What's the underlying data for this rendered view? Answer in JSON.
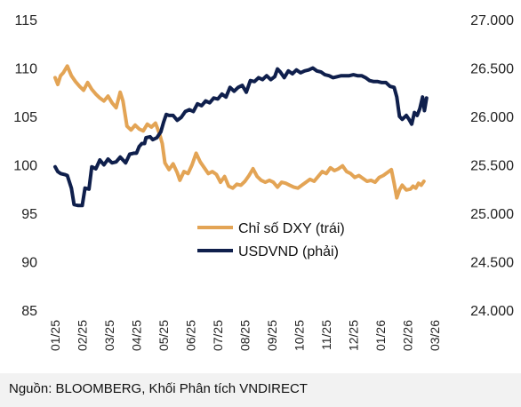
{
  "source_note": "Nguồn: BLOOMBERG, Khối Phân tích VNDIRECT",
  "chart_data": {
    "type": "line",
    "title": "",
    "left_axis": {
      "label": "",
      "range": [
        85,
        115
      ],
      "ticks": [
        "85",
        "90",
        "95",
        "100",
        "105",
        "110",
        "115"
      ]
    },
    "right_axis": {
      "label": "",
      "range": [
        24000,
        27000
      ],
      "ticks": [
        "24.000",
        "24.500",
        "25.000",
        "25.500",
        "26.000",
        "26.500",
        "27.000"
      ]
    },
    "x_axis": {
      "range": [
        0,
        14.1
      ],
      "tick_labels": [
        "01/25",
        "02/25",
        "03/25",
        "04/25",
        "05/25",
        "06/25",
        "07/25",
        "08/25",
        "09/25",
        "10/25",
        "11/25",
        "12/25",
        "01/26",
        "02/26",
        "03/26"
      ]
    },
    "grid": false,
    "legend_position": "center-right",
    "series": [
      {
        "name": "Chỉ số DXY (trái)",
        "axis": "left",
        "color": "#e3a455",
        "points": [
          [
            0,
            109
          ],
          [
            0.1,
            108.3
          ],
          [
            0.2,
            109.2
          ],
          [
            0.3,
            109.5
          ],
          [
            0.45,
            110.2
          ],
          [
            0.6,
            109.2
          ],
          [
            0.75,
            108.6
          ],
          [
            0.9,
            108.1
          ],
          [
            1.05,
            107.7
          ],
          [
            1.2,
            108.5
          ],
          [
            1.35,
            107.8
          ],
          [
            1.5,
            107.3
          ],
          [
            1.65,
            106.9
          ],
          [
            1.8,
            106.6
          ],
          [
            1.95,
            107.1
          ],
          [
            2.1,
            106.4
          ],
          [
            2.25,
            105.9
          ],
          [
            2.4,
            107.5
          ],
          [
            2.5,
            106.6
          ],
          [
            2.65,
            104
          ],
          [
            2.8,
            103.6
          ],
          [
            2.95,
            104.1
          ],
          [
            3.1,
            103.7
          ],
          [
            3.25,
            103.5
          ],
          [
            3.4,
            104.2
          ],
          [
            3.55,
            103.9
          ],
          [
            3.7,
            104.3
          ],
          [
            3.85,
            103.2
          ],
          [
            3.95,
            102.2
          ],
          [
            4.05,
            100.2
          ],
          [
            4.2,
            99.5
          ],
          [
            4.35,
            100.1
          ],
          [
            4.5,
            99.2
          ],
          [
            4.6,
            98.4
          ],
          [
            4.75,
            99.3
          ],
          [
            4.9,
            99.1
          ],
          [
            5.05,
            100
          ],
          [
            5.2,
            101.2
          ],
          [
            5.35,
            100.3
          ],
          [
            5.5,
            99.7
          ],
          [
            5.65,
            99.1
          ],
          [
            5.8,
            99.3
          ],
          [
            5.95,
            99
          ],
          [
            6.1,
            98.2
          ],
          [
            6.25,
            98.8
          ],
          [
            6.4,
            97.8
          ],
          [
            6.55,
            97.6
          ],
          [
            6.7,
            98
          ],
          [
            6.85,
            97.9
          ],
          [
            7.0,
            98.3
          ],
          [
            7.15,
            98.9
          ],
          [
            7.3,
            99.6
          ],
          [
            7.45,
            98.8
          ],
          [
            7.6,
            98.4
          ],
          [
            7.75,
            98.2
          ],
          [
            7.9,
            98.4
          ],
          [
            8.05,
            98.2
          ],
          [
            8.2,
            97.7
          ],
          [
            8.35,
            98.2
          ],
          [
            8.5,
            98.1
          ],
          [
            8.65,
            97.9
          ],
          [
            8.8,
            97.7
          ],
          [
            8.95,
            97.6
          ],
          [
            9.1,
            97.9
          ],
          [
            9.25,
            98.2
          ],
          [
            9.4,
            98.5
          ],
          [
            9.55,
            98.3
          ],
          [
            9.7,
            98.8
          ],
          [
            9.85,
            99.3
          ],
          [
            10.0,
            99.1
          ],
          [
            10.15,
            99.7
          ],
          [
            10.3,
            99.4
          ],
          [
            10.45,
            99.6
          ],
          [
            10.6,
            99.9
          ],
          [
            10.75,
            99.3
          ],
          [
            10.9,
            99.1
          ],
          [
            11.05,
            98.7
          ],
          [
            11.2,
            98.9
          ],
          [
            11.35,
            98.6
          ],
          [
            11.5,
            98.3
          ],
          [
            11.65,
            98.4
          ],
          [
            11.8,
            98.2
          ],
          [
            11.95,
            98.7
          ],
          [
            12.1,
            98.9
          ],
          [
            12.25,
            99.2
          ],
          [
            12.4,
            99.5
          ],
          [
            12.5,
            98.1
          ],
          [
            12.6,
            96.6
          ],
          [
            12.7,
            97.4
          ],
          [
            12.8,
            97.9
          ],
          [
            12.95,
            97.4
          ],
          [
            13.1,
            97.5
          ],
          [
            13.2,
            97.8
          ],
          [
            13.3,
            97.6
          ],
          [
            13.4,
            98.1
          ],
          [
            13.5,
            97.9
          ],
          [
            13.6,
            98.3
          ]
        ]
      },
      {
        "name": "USDVND (phải)",
        "axis": "right",
        "color": "#0f1f4c",
        "points": [
          [
            0,
            25480
          ],
          [
            0.1,
            25430
          ],
          [
            0.2,
            25410
          ],
          [
            0.35,
            25400
          ],
          [
            0.45,
            25390
          ],
          [
            0.6,
            25260
          ],
          [
            0.7,
            25090
          ],
          [
            0.85,
            25080
          ],
          [
            1.0,
            25080
          ],
          [
            1.1,
            25260
          ],
          [
            1.25,
            25250
          ],
          [
            1.35,
            25480
          ],
          [
            1.5,
            25460
          ],
          [
            1.65,
            25550
          ],
          [
            1.8,
            25500
          ],
          [
            1.95,
            25560
          ],
          [
            2.1,
            25520
          ],
          [
            2.25,
            25530
          ],
          [
            2.4,
            25580
          ],
          [
            2.6,
            25520
          ],
          [
            2.75,
            25610
          ],
          [
            2.9,
            25620
          ],
          [
            3.0,
            25620
          ],
          [
            3.1,
            25690
          ],
          [
            3.2,
            25720
          ],
          [
            3.3,
            25720
          ],
          [
            3.35,
            25780
          ],
          [
            3.5,
            25790
          ],
          [
            3.6,
            25760
          ],
          [
            3.75,
            25780
          ],
          [
            3.9,
            25840
          ],
          [
            4.0,
            25940
          ],
          [
            4.1,
            26020
          ],
          [
            4.2,
            26010
          ],
          [
            4.35,
            26010
          ],
          [
            4.5,
            25960
          ],
          [
            4.65,
            25990
          ],
          [
            4.8,
            26050
          ],
          [
            4.95,
            26070
          ],
          [
            5.1,
            26050
          ],
          [
            5.25,
            26130
          ],
          [
            5.4,
            26110
          ],
          [
            5.55,
            26160
          ],
          [
            5.7,
            26140
          ],
          [
            5.85,
            26190
          ],
          [
            6.0,
            26180
          ],
          [
            6.15,
            26230
          ],
          [
            6.3,
            26200
          ],
          [
            6.45,
            26300
          ],
          [
            6.6,
            26260
          ],
          [
            6.75,
            26300
          ],
          [
            6.9,
            26320
          ],
          [
            7.05,
            26250
          ],
          [
            7.2,
            26370
          ],
          [
            7.35,
            26360
          ],
          [
            7.5,
            26400
          ],
          [
            7.65,
            26380
          ],
          [
            7.8,
            26420
          ],
          [
            7.95,
            26380
          ],
          [
            8.1,
            26410
          ],
          [
            8.2,
            26490
          ],
          [
            8.3,
            26460
          ],
          [
            8.45,
            26400
          ],
          [
            8.6,
            26470
          ],
          [
            8.75,
            26440
          ],
          [
            8.9,
            26480
          ],
          [
            9.05,
            26450
          ],
          [
            9.2,
            26470
          ],
          [
            9.35,
            26480
          ],
          [
            9.5,
            26500
          ],
          [
            9.65,
            26470
          ],
          [
            9.8,
            26460
          ],
          [
            9.95,
            26430
          ],
          [
            10.1,
            26420
          ],
          [
            10.25,
            26400
          ],
          [
            10.4,
            26410
          ],
          [
            10.55,
            26420
          ],
          [
            10.7,
            26420
          ],
          [
            10.85,
            26420
          ],
          [
            11.0,
            26430
          ],
          [
            11.15,
            26420
          ],
          [
            11.3,
            26420
          ],
          [
            11.45,
            26400
          ],
          [
            11.6,
            26370
          ],
          [
            11.75,
            26360
          ],
          [
            11.9,
            26360
          ],
          [
            12.05,
            26350
          ],
          [
            12.2,
            26350
          ],
          [
            12.35,
            26310
          ],
          [
            12.5,
            26300
          ],
          [
            12.6,
            26200
          ],
          [
            12.7,
            26000
          ],
          [
            12.8,
            25970
          ],
          [
            12.95,
            26010
          ],
          [
            13.05,
            25970
          ],
          [
            13.15,
            25920
          ],
          [
            13.25,
            26040
          ],
          [
            13.35,
            26010
          ],
          [
            13.45,
            26080
          ],
          [
            13.55,
            26200
          ],
          [
            13.62,
            26060
          ],
          [
            13.7,
            26190
          ]
        ]
      }
    ]
  }
}
